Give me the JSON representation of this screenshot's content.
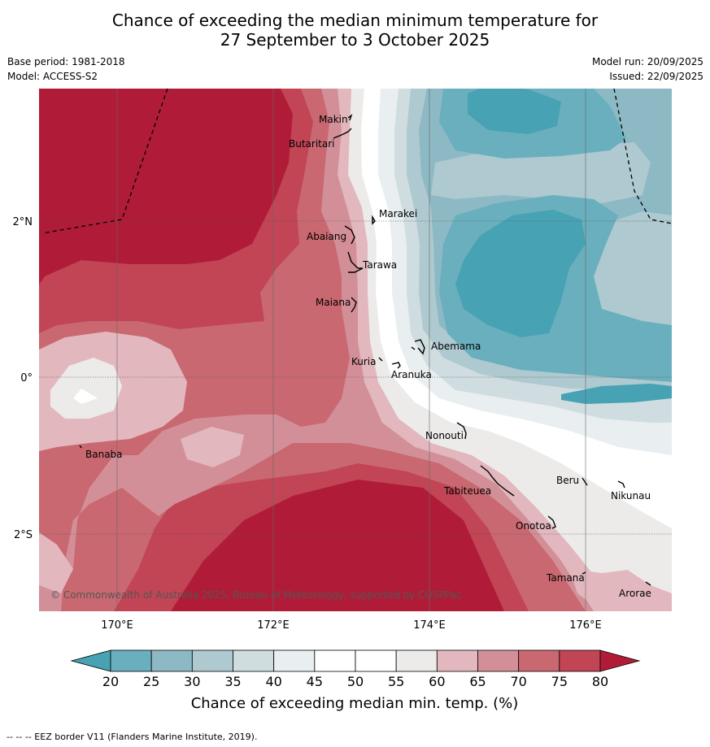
{
  "title": {
    "line1": "Chance of exceeding the median minimum temperature for",
    "line2": "27 September to 3 October 2025"
  },
  "meta": {
    "base_period": "Base period: 1981-2018",
    "model": "Model: ACCESS-S2",
    "model_run": "Model run: 20/09/2025",
    "issued": "Issued: 22/09/2025"
  },
  "axes": {
    "lon_ticks": [
      "170°E",
      "172°E",
      "174°E",
      "176°E"
    ],
    "lat_ticks": [
      "2°N",
      "0°",
      "2°S"
    ]
  },
  "islands": [
    "Makin",
    "Butaritari",
    "Marakei",
    "Abaiang",
    "Tarawa",
    "Maiana",
    "Abemama",
    "Kuria",
    "Aranuka",
    "Banaba",
    "Nonouti",
    "Tabiteuea",
    "Beru",
    "Nikunau",
    "Onotoa",
    "Tamana",
    "Arorae"
  ],
  "copyright": "© Commonwealth of Australia 2025, Bureau of Meteorology, supported by COSPPac",
  "colorbar": {
    "ticks": [
      "20",
      "25",
      "30",
      "35",
      "40",
      "45",
      "50",
      "55",
      "60",
      "65",
      "70",
      "75",
      "80"
    ],
    "colors": [
      "#47a2b4",
      "#6aafbd",
      "#8db9c5",
      "#aec9cf",
      "#cfdde0",
      "#e9eef0",
      "#ffffff",
      "#ffffff",
      "#ecebea",
      "#e2b8be",
      "#d38f98",
      "#c96870",
      "#c14555",
      "#b01c38"
    ],
    "label": "Chance of exceeding median min. temp. (%)"
  },
  "footer": "--  --  -- EEZ border V11 (Flanders Marine Institute, 2019)."
}
